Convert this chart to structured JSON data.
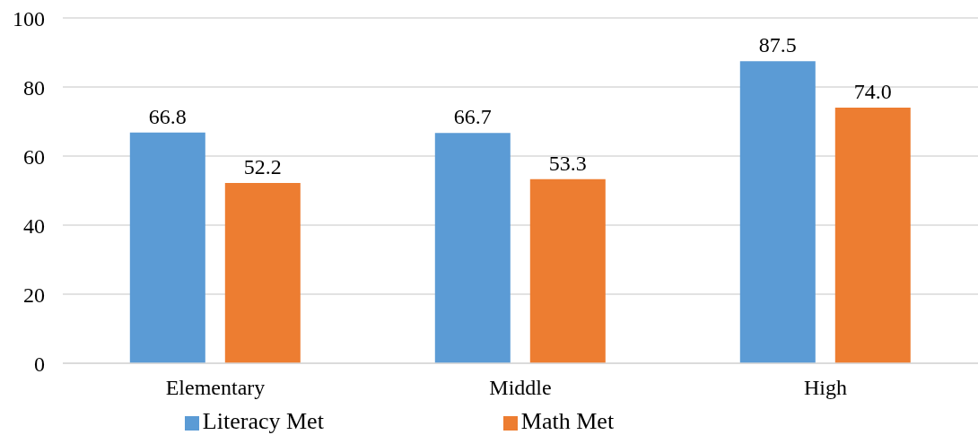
{
  "chart_data": {
    "type": "bar",
    "categories": [
      "Elementary",
      "Middle",
      "High"
    ],
    "series": [
      {
        "name": "Literacy Met",
        "color": "#5b9bd5",
        "values": [
          66.8,
          66.7,
          87.5
        ],
        "value_labels": [
          "66.8",
          "66.7",
          "87.5"
        ]
      },
      {
        "name": "Math Met",
        "color": "#ed7d31",
        "values": [
          52.2,
          53.3,
          74.0
        ],
        "value_labels": [
          "52.2",
          "53.3",
          "74.0"
        ]
      }
    ],
    "ylim": [
      0,
      100
    ],
    "yticks": [
      0,
      20,
      40,
      60,
      80,
      100
    ],
    "grid": "y",
    "legend": "bottom"
  }
}
